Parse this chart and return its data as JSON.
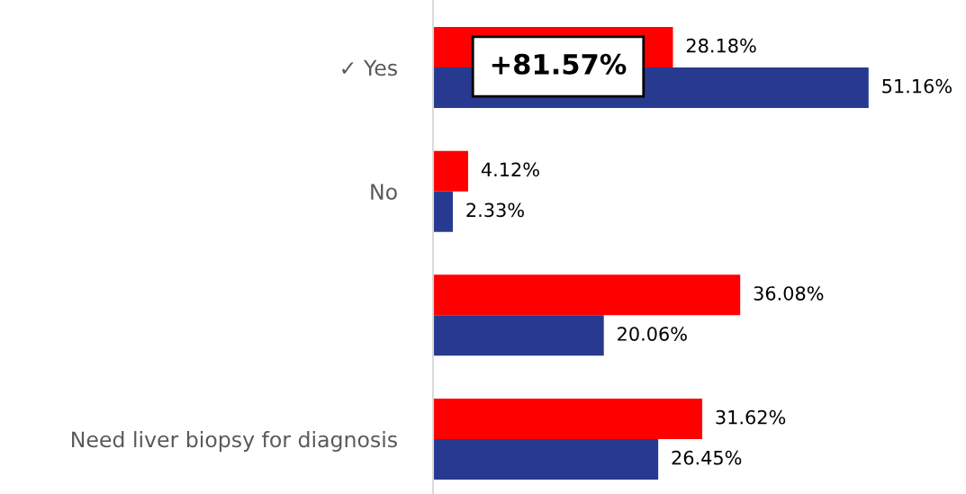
{
  "chart_data": {
    "type": "bar",
    "orientation": "horizontal",
    "categories": [
      "✓ Yes",
      "No",
      null,
      "Need liver biopsy for diagnosis"
    ],
    "series": [
      {
        "color": "#ff0000",
        "values": [
          28.18,
          4.12,
          36.08,
          31.62
        ],
        "value_labels": [
          "28.18%",
          "4.12%",
          "36.08%",
          "31.62%"
        ]
      },
      {
        "color": "#283a8f",
        "values": [
          51.16,
          2.33,
          20.06,
          26.45
        ],
        "value_labels": [
          "51.16%",
          "2.33%",
          "20.06%",
          "26.45%"
        ]
      }
    ],
    "annotations": [
      "+81.57%"
    ],
    "legend": false,
    "grid": false
  }
}
